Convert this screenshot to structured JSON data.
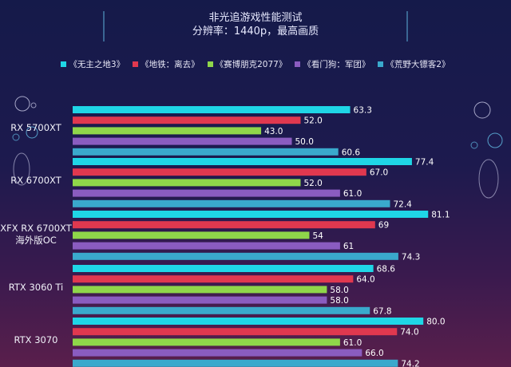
{
  "chart_data": {
    "type": "bar",
    "orientation": "horizontal",
    "title": "非光追游戏性能测试",
    "subtitle": "分辨率：1440p，最高画质",
    "categories": [
      [
        "RX 5700XT"
      ],
      [
        "RX 6700XT"
      ],
      [
        "XFX RX 6700XT",
        "海外版OC"
      ],
      [
        "RTX 3060 Ti"
      ],
      [
        "RTX 3070"
      ]
    ],
    "series": [
      {
        "name": "《无主之地3》",
        "color": "#1fd6e6",
        "values": [
          63.3,
          77.4,
          81.1,
          68.6,
          80.0
        ],
        "labels": [
          "63.3",
          "77.4",
          "81.1",
          "68.6",
          "80.0"
        ]
      },
      {
        "name": "《地铁：离去》",
        "color": "#e0384f",
        "values": [
          52.0,
          67.0,
          69,
          64.0,
          74.0
        ],
        "labels": [
          "52.0",
          "67.0",
          "69",
          "64.0",
          "74.0"
        ]
      },
      {
        "name": "《赛博朋克2077》",
        "color": "#8fd64a",
        "values": [
          43.0,
          52.0,
          54,
          58.0,
          61.0
        ],
        "labels": [
          "43.0",
          "52.0",
          "54",
          "58.0",
          "61.0"
        ]
      },
      {
        "name": "《看门狗：军团》",
        "color": "#8a5cc0",
        "values": [
          50.0,
          61.0,
          61,
          58.0,
          66.0
        ],
        "labels": [
          "50.0",
          "61.0",
          "61",
          "58.0",
          "66.0"
        ]
      },
      {
        "name": "《荒野大镖客2》",
        "color": "#3aa9cc",
        "values": [
          60.6,
          72.4,
          74.3,
          67.8,
          74.2
        ],
        "labels": [
          "60.6",
          "72.4",
          "74.3",
          "67.8",
          "74.2"
        ]
      }
    ],
    "xlim": [
      0,
      100
    ],
    "grid": false,
    "legend_position": "top"
  }
}
